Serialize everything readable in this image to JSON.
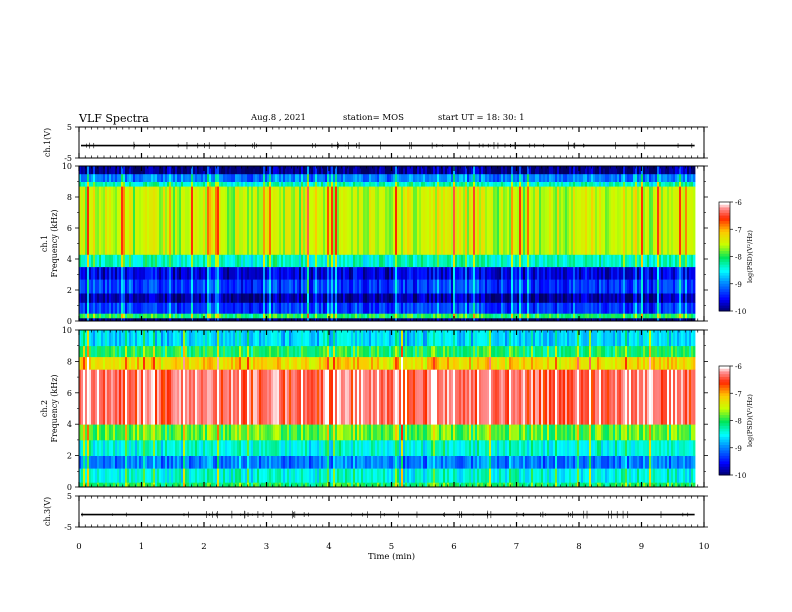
{
  "header": {
    "title": "VLF Spectra",
    "date": "Aug.8 , 2021",
    "station": "station= MOS",
    "start": "start UT = 18: 30: 1"
  },
  "chart_data": [
    {
      "type": "line",
      "panel": "ch.1 waveform",
      "ylabel": "ch.1(V)",
      "ylim": [
        -5,
        5
      ],
      "y_ticks": [
        "5",
        "-5"
      ],
      "level": -1
    },
    {
      "type": "heatmap",
      "panel": "ch.1 spectrogram",
      "ylabel": "ch.1 Frequency (kHz)",
      "ylim": [
        0,
        10
      ],
      "y_ticks": [
        "0",
        "2",
        "4",
        "6",
        "8",
        "10"
      ],
      "colorbar": {
        "label": "log(PSD)(V²/Hz)",
        "range": [
          -10,
          -6
        ],
        "ticks": [
          "-6",
          "-7",
          "-8",
          "-9",
          "-10"
        ]
      },
      "bands_khz_log_psd": [
        {
          "from": 0.0,
          "to": 0.2,
          "value": -10
        },
        {
          "from": 0.2,
          "to": 0.5,
          "value": -8
        },
        {
          "from": 0.5,
          "to": 1.2,
          "value": -9.3
        },
        {
          "from": 1.2,
          "to": 1.8,
          "value": -9.8
        },
        {
          "from": 1.8,
          "to": 2.7,
          "value": -9.3
        },
        {
          "from": 2.7,
          "to": 3.5,
          "value": -9.6
        },
        {
          "from": 3.5,
          "to": 4.3,
          "value": -8.3
        },
        {
          "from": 4.3,
          "to": 8.7,
          "value": -7.5
        },
        {
          "from": 8.7,
          "to": 9.0,
          "value": -8.3
        },
        {
          "from": 9.0,
          "to": 9.5,
          "value": -9.0
        },
        {
          "from": 9.5,
          "to": 10.0,
          "value": -9.9
        }
      ]
    },
    {
      "type": "heatmap",
      "panel": "ch.2 spectrogram",
      "ylabel": "ch.2 Frequency (kHz)",
      "ylim": [
        0,
        10
      ],
      "y_ticks": [
        "0",
        "2",
        "4",
        "6",
        "8",
        "10"
      ],
      "colorbar": {
        "label": "log(PSD)(V²/Hz)",
        "range": [
          -10,
          -6
        ],
        "ticks": [
          "-6",
          "-7",
          "-8",
          "-9",
          "-10"
        ]
      },
      "bands_khz_log_psd": [
        {
          "from": 0.0,
          "to": 0.3,
          "value": -8
        },
        {
          "from": 0.3,
          "to": 1.2,
          "value": -8.4
        },
        {
          "from": 1.2,
          "to": 2.0,
          "value": -9.0
        },
        {
          "from": 2.0,
          "to": 3.0,
          "value": -8.4
        },
        {
          "from": 3.0,
          "to": 4.0,
          "value": -7.8
        },
        {
          "from": 4.0,
          "to": 7.5,
          "value": -6.3
        },
        {
          "from": 7.5,
          "to": 8.3,
          "value": -7.2
        },
        {
          "from": 8.3,
          "to": 9.0,
          "value": -8.0
        },
        {
          "from": 9.0,
          "to": 10.0,
          "value": -8.6
        }
      ]
    },
    {
      "type": "line",
      "panel": "ch.3 waveform",
      "ylabel": "ch.3(V)",
      "ylim": [
        -5,
        5
      ],
      "y_ticks": [
        "5",
        "-5"
      ],
      "level": -1
    }
  ],
  "x_axis": {
    "label": "Time (min)",
    "range": [
      0,
      10
    ],
    "ticks": [
      "0",
      "1",
      "2",
      "3",
      "4",
      "5",
      "6",
      "7",
      "8",
      "9",
      "10"
    ],
    "data_end": 9.85
  }
}
